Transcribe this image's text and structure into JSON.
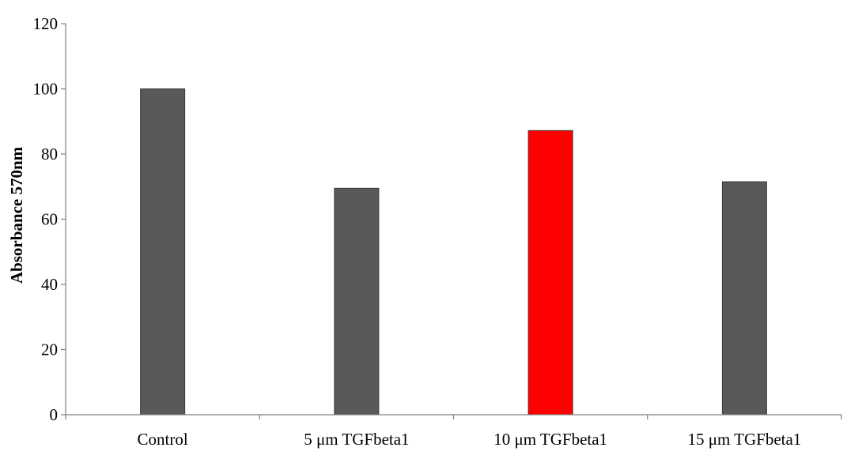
{
  "chart_data": {
    "type": "bar",
    "title": "",
    "xlabel": "",
    "ylabel": "Absorbance 570nm",
    "ylim": [
      0,
      120
    ],
    "yticks": [
      0,
      20,
      40,
      60,
      80,
      100,
      120
    ],
    "categories": [
      "Control",
      "5 μm TGFbeta1",
      "10 μm TGFbeta1",
      "15 μm TGFbeta1"
    ],
    "values": [
      100,
      69.5,
      87.2,
      71.5
    ],
    "colors": [
      "#595959",
      "#595959",
      "#ff0000",
      "#595959"
    ],
    "grid": false,
    "legend": "none"
  }
}
